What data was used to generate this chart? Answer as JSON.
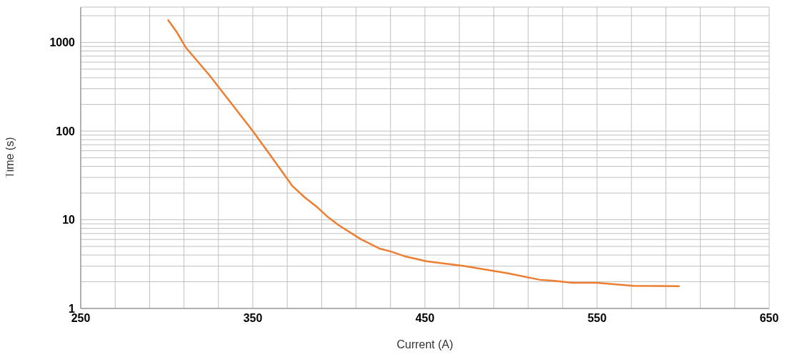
{
  "chart_data": {
    "type": "line",
    "xlabel": "Current (A)",
    "ylabel": "Time (s)",
    "x": [
      300.6,
      306,
      311,
      325,
      350,
      362.6,
      373,
      380,
      387.5,
      393.7,
      399.8,
      413,
      424,
      430,
      437.8,
      450.8,
      473,
      497.8,
      517,
      524,
      530,
      536,
      550,
      571,
      598
    ],
    "series": [
      {
        "color": "#ed7d31",
        "values": [
          1810,
          1290,
          880,
          421,
          100,
          46,
          24,
          18,
          13.8,
          10.7,
          8.7,
          6.0,
          4.7,
          4.4,
          3.9,
          3.4,
          3.0,
          2.5,
          2.1,
          2.06,
          2.0,
          1.95,
          1.95,
          1.8,
          1.78
        ]
      }
    ],
    "xlim": [
      250,
      650
    ],
    "xticks": [
      250,
      {
        "value": 270,
        "label": null
      },
      {
        "value": 290,
        "label": null
      },
      {
        "value": 310,
        "label": null
      },
      {
        "value": 330,
        "label": null
      },
      350,
      {
        "value": 370,
        "label": null
      },
      {
        "value": 390,
        "label": null
      },
      {
        "value": 410,
        "label": null
      },
      {
        "value": 430,
        "label": null
      },
      450,
      {
        "value": 470,
        "label": null
      },
      {
        "value": 490,
        "label": null
      },
      {
        "value": 510,
        "label": null
      },
      {
        "value": 530,
        "label": null
      },
      550,
      {
        "value": 570,
        "label": null
      },
      {
        "value": 590,
        "label": null
      },
      {
        "value": 610,
        "label": null
      },
      {
        "value": 630,
        "label": null
      },
      650
    ],
    "ylim": [
      1,
      2500
    ],
    "yticks": [
      1,
      {
        "value": 2,
        "label": null
      },
      {
        "value": 3,
        "label": null
      },
      {
        "value": 4,
        "label": null
      },
      {
        "value": 5,
        "label": null
      },
      {
        "value": 6,
        "label": null
      },
      {
        "value": 7,
        "label": null
      },
      {
        "value": 8,
        "label": null
      },
      {
        "value": 9,
        "label": null
      },
      10,
      {
        "value": 20,
        "label": null
      },
      {
        "value": 30,
        "label": null
      },
      {
        "value": 40,
        "label": null
      },
      {
        "value": 50,
        "label": null
      },
      {
        "value": 60,
        "label": null
      },
      {
        "value": 70,
        "label": null
      },
      {
        "value": 80,
        "label": null
      },
      {
        "value": 90,
        "label": null
      },
      100,
      {
        "value": 200,
        "label": null
      },
      {
        "value": 300,
        "label": null
      },
      {
        "value": 400,
        "label": null
      },
      {
        "value": 500,
        "label": null
      },
      {
        "value": 600,
        "label": null
      },
      {
        "value": 700,
        "label": null
      },
      {
        "value": 800,
        "label": null
      },
      {
        "value": 900,
        "label": null
      },
      1000,
      {
        "value": 2000,
        "label": null
      }
    ],
    "log": true,
    "grid": true,
    "marker": "none",
    "line_style": "solid"
  }
}
